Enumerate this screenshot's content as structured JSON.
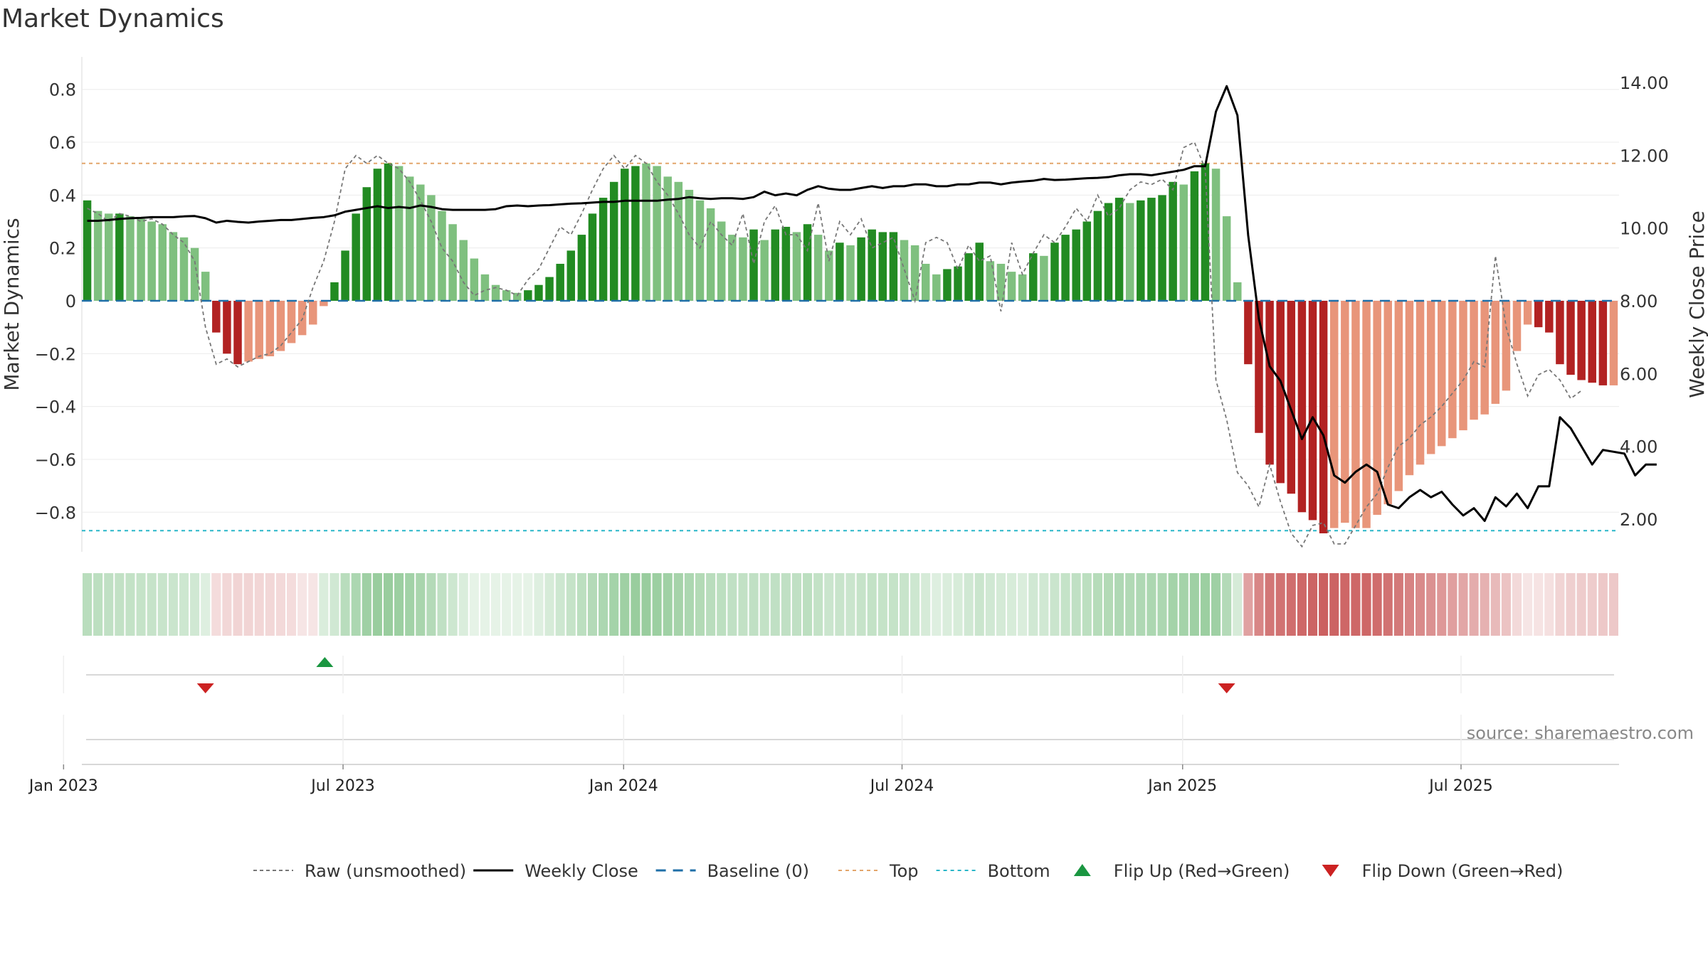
{
  "title": "Market Dynamics",
  "source_text": "source: sharemaestro.com",
  "colors": {
    "strong_green": "#228b22",
    "light_green": "#7fc07f",
    "strong_red": "#b22222",
    "light_red": "#e8957a",
    "raw": "#777777",
    "close": "#000000",
    "baseline": "#1f6fa8",
    "top": "#e3a56b",
    "bottom": "#29b6c8",
    "flip_up": "#1a9641",
    "flip_down": "#cc2222"
  },
  "chart_data": {
    "type": "bar",
    "title": "Market Dynamics",
    "ylabel": "Market Dynamics",
    "y2label": "Weekly Close Price",
    "ylim": [
      -0.95,
      0.95
    ],
    "y2lim": [
      1.1,
      14.9
    ],
    "y_ticks": [
      "0.8",
      "0.6",
      "0.4",
      "0.2",
      "0",
      "−0.2",
      "−0.4",
      "−0.6",
      "−0.8"
    ],
    "y_tick_values": [
      0.8,
      0.6,
      0.4,
      0.2,
      0,
      -0.2,
      -0.4,
      -0.6,
      -0.8
    ],
    "y2_ticks": [
      "14.00",
      "12.00",
      "10.00",
      "8.00",
      "6.00",
      "4.00",
      "2.00"
    ],
    "y2_tick_values": [
      14,
      12,
      10,
      8,
      6,
      4,
      2
    ],
    "x_ticks": [
      "Jan 2023",
      "Jul 2023",
      "Jan 2024",
      "Jul 2024",
      "Jan 2025",
      "Jul 2025"
    ],
    "x_tick_weeks": [
      -1.7,
      24.3,
      50.4,
      76.3,
      102.4,
      128.3
    ],
    "grid": true,
    "legend_position": "bottom",
    "top_line": 0.52,
    "bottom_line": -0.87,
    "baseline": 0,
    "series": [
      {
        "name": "Market Dynamics",
        "values": [
          0.38,
          0.34,
          0.33,
          0.33,
          0.32,
          0.31,
          0.3,
          0.29,
          0.26,
          0.24,
          0.2,
          0.11,
          -0.12,
          -0.2,
          -0.24,
          -0.23,
          -0.22,
          -0.21,
          -0.19,
          -0.16,
          -0.13,
          -0.09,
          -0.02,
          0.07,
          0.19,
          0.33,
          0.43,
          0.5,
          0.52,
          0.51,
          0.47,
          0.44,
          0.4,
          0.34,
          0.29,
          0.23,
          0.16,
          0.1,
          0.06,
          0.04,
          0.03,
          0.04,
          0.06,
          0.09,
          0.14,
          0.19,
          0.25,
          0.33,
          0.39,
          0.45,
          0.5,
          0.51,
          0.52,
          0.51,
          0.47,
          0.45,
          0.42,
          0.38,
          0.35,
          0.3,
          0.25,
          0.24,
          0.27,
          0.23,
          0.27,
          0.28,
          0.26,
          0.29,
          0.25,
          0.19,
          0.22,
          0.21,
          0.24,
          0.27,
          0.26,
          0.26,
          0.23,
          0.21,
          0.14,
          0.1,
          0.12,
          0.13,
          0.18,
          0.22,
          0.15,
          0.14,
          0.11,
          0.1,
          0.18,
          0.17,
          0.22,
          0.25,
          0.27,
          0.3,
          0.34,
          0.37,
          0.39,
          0.37,
          0.38,
          0.39,
          0.4,
          0.45,
          0.44,
          0.49,
          0.52,
          0.5,
          0.32,
          0.07,
          -0.24,
          -0.5,
          -0.62,
          -0.69,
          -0.73,
          -0.8,
          -0.83,
          -0.88,
          -0.86,
          -0.84,
          -0.86,
          -0.86,
          -0.81,
          -0.77,
          -0.72,
          -0.66,
          -0.62,
          -0.58,
          -0.55,
          -0.52,
          -0.49,
          -0.45,
          -0.43,
          -0.39,
          -0.34,
          -0.19,
          -0.09,
          -0.1,
          -0.12,
          -0.24,
          -0.28,
          -0.3,
          -0.31,
          -0.32,
          -0.32
        ],
        "strength": [
          1,
          0,
          0,
          1,
          0,
          0,
          0,
          0,
          0,
          0,
          0,
          0,
          1,
          1,
          1,
          0,
          0,
          0,
          0,
          0,
          0,
          0,
          0,
          1,
          1,
          1,
          1,
          1,
          1,
          0,
          0,
          0,
          0,
          0,
          0,
          0,
          0,
          0,
          0,
          0,
          0,
          1,
          1,
          1,
          1,
          1,
          1,
          1,
          1,
          1,
          1,
          1,
          0,
          0,
          0,
          0,
          0,
          0,
          0,
          0,
          0,
          0,
          1,
          0,
          1,
          1,
          0,
          1,
          0,
          0,
          1,
          0,
          1,
          1,
          1,
          1,
          0,
          0,
          0,
          0,
          1,
          1,
          1,
          1,
          0,
          0,
          0,
          0,
          1,
          0,
          1,
          1,
          1,
          1,
          1,
          1,
          1,
          0,
          1,
          1,
          1,
          1,
          0,
          1,
          1,
          0,
          0,
          0,
          1,
          1,
          1,
          1,
          1,
          1,
          1,
          1,
          0,
          0,
          0,
          0,
          0,
          0,
          0,
          0,
          0,
          0,
          0,
          0,
          0,
          0,
          0,
          0,
          0,
          0,
          0,
          1,
          1,
          1,
          1,
          1,
          1,
          1,
          0
        ]
      },
      {
        "name": "Raw (unsmoothed)",
        "values": [
          0.35,
          0.33,
          0.3,
          0.33,
          0.32,
          0.3,
          0.31,
          0.29,
          0.25,
          0.22,
          0.15,
          -0.1,
          -0.24,
          -0.22,
          -0.25,
          -0.23,
          -0.21,
          -0.2,
          -0.17,
          -0.12,
          -0.07,
          0.05,
          0.15,
          0.3,
          0.5,
          0.55,
          0.52,
          0.55,
          0.52,
          0.5,
          0.45,
          0.38,
          0.3,
          0.2,
          0.15,
          0.07,
          0.02,
          0.04,
          0.05,
          0.04,
          0.02,
          0.08,
          0.12,
          0.2,
          0.28,
          0.25,
          0.33,
          0.42,
          0.5,
          0.55,
          0.5,
          0.55,
          0.52,
          0.45,
          0.4,
          0.33,
          0.25,
          0.2,
          0.3,
          0.25,
          0.21,
          0.33,
          0.14,
          0.3,
          0.36,
          0.25,
          0.25,
          0.19,
          0.37,
          0.15,
          0.3,
          0.25,
          0.31,
          0.2,
          0.22,
          0.24,
          0.12,
          0.0,
          0.22,
          0.24,
          0.22,
          0.12,
          0.21,
          0.15,
          0.17,
          -0.04,
          0.22,
          0.1,
          0.18,
          0.25,
          0.22,
          0.28,
          0.35,
          0.3,
          0.4,
          0.32,
          0.35,
          0.42,
          0.45,
          0.44,
          0.46,
          0.42,
          0.58,
          0.6,
          0.5,
          -0.3,
          -0.45,
          -0.65,
          -0.7,
          -0.78,
          -0.62,
          -0.76,
          -0.88,
          -0.93,
          -0.85,
          -0.84,
          -0.92,
          -0.92,
          -0.85,
          -0.78,
          -0.73,
          -0.63,
          -0.55,
          -0.52,
          -0.47,
          -0.44,
          -0.4,
          -0.35,
          -0.3,
          -0.23,
          -0.25,
          0.17,
          -0.1,
          -0.24,
          -0.36,
          -0.28,
          -0.26,
          -0.3,
          -0.37,
          -0.34
        ]
      },
      {
        "name": "Weekly Close",
        "values": [
          10.2,
          10.2,
          10.22,
          10.25,
          10.27,
          10.28,
          10.3,
          10.3,
          10.3,
          10.32,
          10.33,
          10.27,
          10.15,
          10.2,
          10.17,
          10.15,
          10.18,
          10.2,
          10.22,
          10.22,
          10.25,
          10.28,
          10.3,
          10.35,
          10.45,
          10.5,
          10.55,
          10.6,
          10.55,
          10.58,
          10.55,
          10.62,
          10.58,
          10.52,
          10.5,
          10.5,
          10.5,
          10.5,
          10.52,
          10.6,
          10.62,
          10.6,
          10.62,
          10.63,
          10.65,
          10.67,
          10.68,
          10.7,
          10.72,
          10.72,
          10.75,
          10.75,
          10.75,
          10.75,
          10.78,
          10.8,
          10.85,
          10.82,
          10.8,
          10.82,
          10.82,
          10.8,
          10.85,
          11.0,
          10.9,
          10.95,
          10.9,
          11.05,
          11.15,
          11.08,
          11.05,
          11.05,
          11.1,
          11.15,
          11.1,
          11.15,
          11.15,
          11.2,
          11.2,
          11.15,
          11.15,
          11.2,
          11.2,
          11.25,
          11.25,
          11.2,
          11.25,
          11.28,
          11.3,
          11.35,
          11.32,
          11.33,
          11.35,
          11.37,
          11.38,
          11.4,
          11.45,
          11.48,
          11.48,
          11.45,
          11.5,
          11.55,
          11.6,
          11.7,
          11.7,
          13.2,
          13.9,
          13.1,
          9.8,
          7.5,
          6.2,
          5.8,
          5.0,
          4.2,
          4.8,
          4.3,
          3.2,
          3.0,
          3.3,
          3.5,
          3.3,
          2.4,
          2.3,
          2.6,
          2.8,
          2.6,
          2.75,
          2.4,
          2.1,
          2.3,
          1.95,
          2.6,
          2.35,
          2.7,
          2.3,
          2.9,
          2.9,
          4.8,
          4.5,
          4.0,
          3.5,
          3.9,
          3.85,
          3.8,
          3.2,
          3.5,
          3.5
        ]
      },
      {
        "name": "Baseline (0)",
        "values": [
          0
        ]
      },
      {
        "name": "Top",
        "values": [
          0.52
        ]
      },
      {
        "name": "Bottom",
        "values": [
          -0.87
        ]
      }
    ],
    "heat_strip": {
      "values": [
        0.42,
        0.4,
        0.38,
        0.37,
        0.36,
        0.35,
        0.34,
        0.33,
        0.32,
        0.3,
        0.28,
        0.2,
        -0.2,
        -0.23,
        -0.25,
        -0.25,
        -0.24,
        -0.23,
        -0.22,
        -0.2,
        -0.15,
        -0.1,
        0.22,
        0.28,
        0.42,
        0.5,
        0.58,
        0.62,
        0.62,
        0.6,
        0.56,
        0.52,
        0.45,
        0.38,
        0.3,
        0.22,
        0.15,
        0.12,
        0.1,
        0.1,
        0.12,
        0.15,
        0.2,
        0.25,
        0.3,
        0.35,
        0.4,
        0.45,
        0.5,
        0.55,
        0.58,
        0.62,
        0.62,
        0.6,
        0.57,
        0.54,
        0.5,
        0.46,
        0.42,
        0.4,
        0.38,
        0.37,
        0.38,
        0.36,
        0.38,
        0.38,
        0.38,
        0.4,
        0.36,
        0.32,
        0.33,
        0.32,
        0.34,
        0.36,
        0.35,
        0.35,
        0.33,
        0.3,
        0.25,
        0.2,
        0.22,
        0.24,
        0.28,
        0.32,
        0.28,
        0.26,
        0.24,
        0.22,
        0.28,
        0.28,
        0.32,
        0.35,
        0.38,
        0.4,
        0.44,
        0.46,
        0.48,
        0.47,
        0.48,
        0.5,
        0.5,
        0.55,
        0.55,
        0.58,
        0.6,
        0.58,
        0.45,
        0.25,
        -0.55,
        -0.7,
        -0.8,
        -0.82,
        -0.85,
        -0.88,
        -0.9,
        -0.92,
        -0.9,
        -0.88,
        -0.88,
        -0.88,
        -0.85,
        -0.82,
        -0.78,
        -0.72,
        -0.68,
        -0.64,
        -0.6,
        -0.56,
        -0.52,
        -0.48,
        -0.45,
        -0.4,
        -0.35,
        -0.22,
        -0.15,
        -0.16,
        -0.18,
        -0.25,
        -0.28,
        -0.3,
        -0.3,
        -0.32,
        -0.32
      ]
    },
    "flips": [
      {
        "type": "down",
        "week": 11.5
      },
      {
        "type": "up",
        "week": 22.6
      },
      {
        "type": "down",
        "week": 106.5
      }
    ]
  },
  "legend": [
    {
      "key": "raw",
      "label": "Raw (unsmoothed)"
    },
    {
      "key": "close",
      "label": "Weekly Close"
    },
    {
      "key": "baseline",
      "label": "Baseline (0)"
    },
    {
      "key": "top",
      "label": "Top"
    },
    {
      "key": "bottom",
      "label": "Bottom"
    },
    {
      "key": "flip_up",
      "label": "Flip Up (Red→Green)"
    },
    {
      "key": "flip_down",
      "label": "Flip Down (Green→Red)"
    }
  ]
}
